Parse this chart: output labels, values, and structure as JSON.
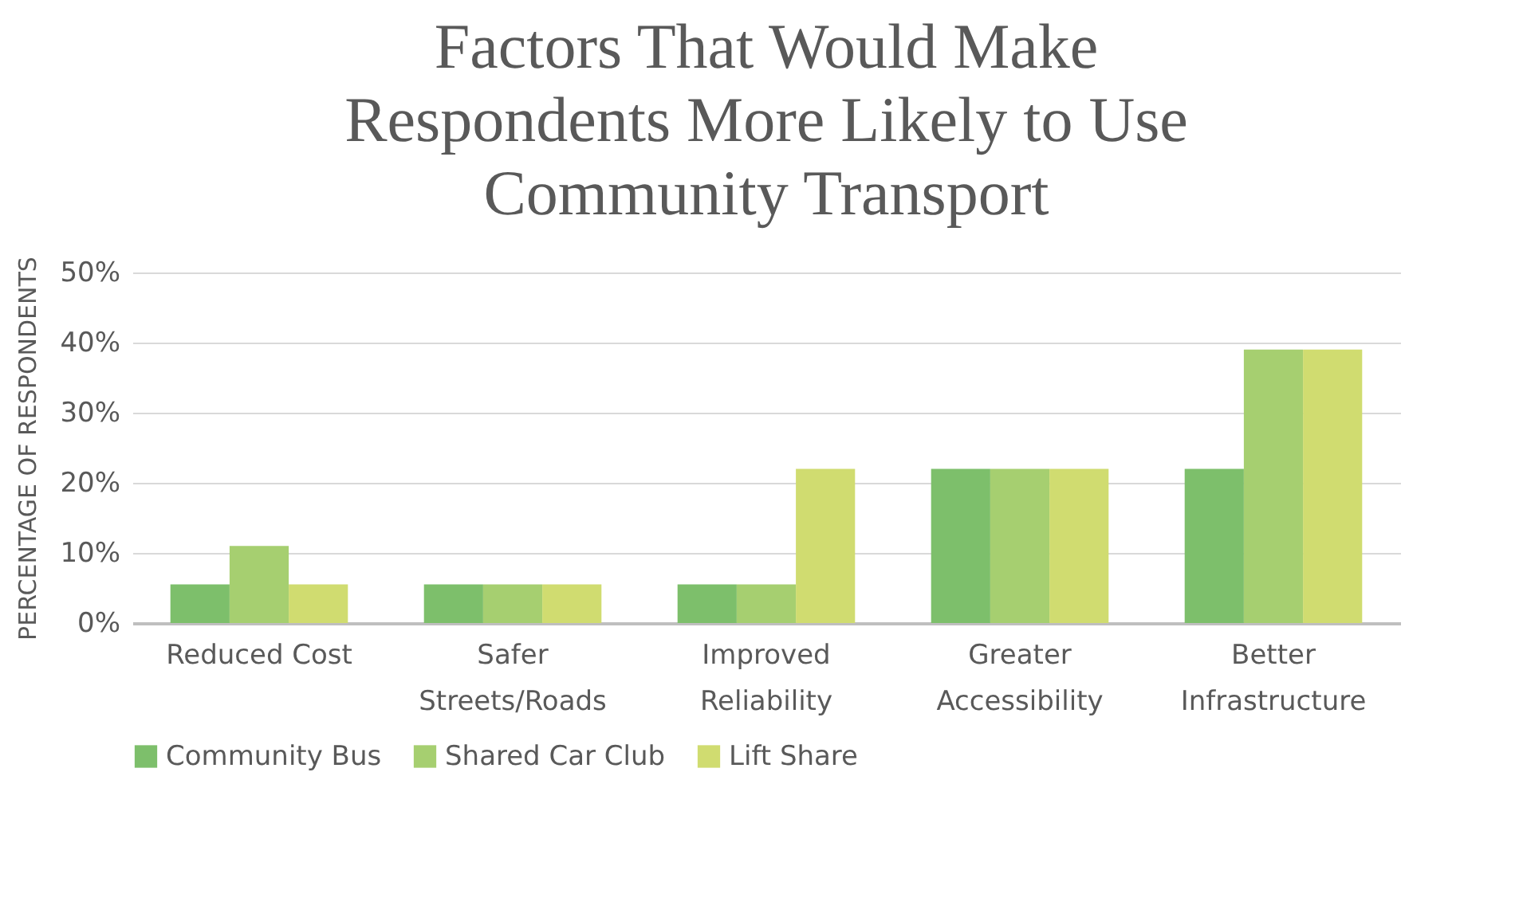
{
  "chart_data": {
    "type": "bar",
    "title": "Factors That Would Make Respondents More Likely to Use Community Transport",
    "ylabel": "PERCENTAGE OF RESPONDENTS",
    "categories": [
      "Reduced Cost",
      "Safer Streets/Roads",
      "Improved Reliability",
      "Greater Accessibility",
      "Better Infrastructure"
    ],
    "series": [
      {
        "name": "Community Bus",
        "color": "#7dbf6b",
        "values": [
          5.5,
          5.5,
          5.5,
          22,
          22
        ]
      },
      {
        "name": "Shared Car Club",
        "color": "#a6cf70",
        "values": [
          11,
          5.5,
          5.5,
          22,
          39
        ]
      },
      {
        "name": "Lift Share",
        "color": "#d0dc70",
        "values": [
          5.5,
          5.5,
          22,
          22,
          39
        ]
      }
    ],
    "ylim": [
      0,
      50
    ],
    "yticks": [
      {
        "value": 0,
        "label": "0%"
      },
      {
        "value": 10,
        "label": "10%"
      },
      {
        "value": 20,
        "label": "20%"
      },
      {
        "value": 30,
        "label": "30%"
      },
      {
        "value": 40,
        "label": "40%"
      },
      {
        "value": 50,
        "label": "50%"
      }
    ],
    "grid": true,
    "legend": "bottom"
  }
}
